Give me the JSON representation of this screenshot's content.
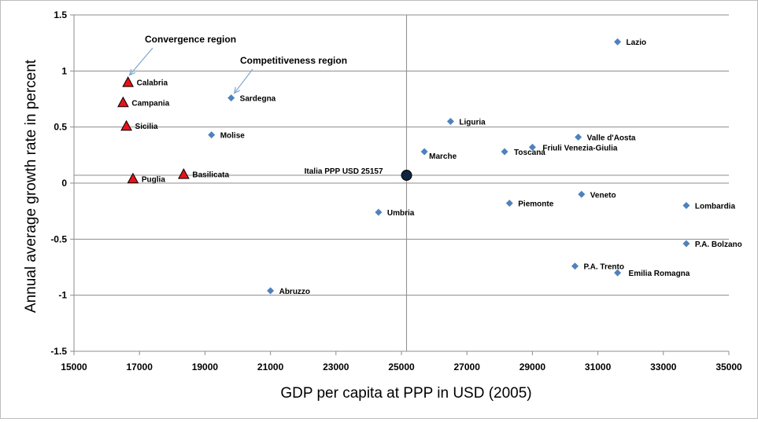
{
  "chart_data": {
    "type": "scatter",
    "title": "",
    "xlabel": "GDP per capita at PPP in USD (2005)",
    "ylabel": "Annual average growth rate in percent",
    "xlim": [
      15000,
      35000
    ],
    "ylim": [
      -1.5,
      1.5
    ],
    "x_ticks": [
      "15000",
      "17000",
      "19000",
      "21000",
      "23000",
      "25000",
      "27000",
      "29000",
      "31000",
      "33000",
      "35000"
    ],
    "y_ticks": [
      "1.5",
      "1",
      "0.5",
      "0",
      "-0.5",
      "-1",
      "-1.5"
    ],
    "grid": true,
    "reference_lines": {
      "x": 25157,
      "y": 0.07
    },
    "series": [
      {
        "marker": "triangle",
        "color": "#E8121A",
        "points": [
          {
            "label": "Calabria",
            "x": 16650,
            "y": 0.9
          },
          {
            "label": "Campania",
            "x": 16500,
            "y": 0.72
          },
          {
            "label": "Sicilia",
            "x": 16600,
            "y": 0.51
          },
          {
            "label": "Puglia",
            "x": 16800,
            "y": 0.04
          },
          {
            "label": "Basilicata",
            "x": 18350,
            "y": 0.08
          }
        ]
      },
      {
        "marker": "diamond",
        "color": "#4F81BD",
        "points": [
          {
            "label": "Lazio",
            "x": 31600,
            "y": 1.26
          },
          {
            "label": "Sardegna",
            "x": 19800,
            "y": 0.76
          },
          {
            "label": "Molise",
            "x": 19200,
            "y": 0.43
          },
          {
            "label": "Liguria",
            "x": 26500,
            "y": 0.55
          },
          {
            "label": "Marche",
            "x": 25700,
            "y": 0.28
          },
          {
            "label": "Toscana",
            "x": 28150,
            "y": 0.28
          },
          {
            "label": "Valle d'Aosta",
            "x": 30400,
            "y": 0.41
          },
          {
            "label": "Friuli Venezia-Giulia",
            "x": 29000,
            "y": 0.32
          },
          {
            "label": "Veneto",
            "x": 30500,
            "y": -0.1
          },
          {
            "label": "Lombardia",
            "x": 33700,
            "y": -0.2
          },
          {
            "label": "Piemonte",
            "x": 28300,
            "y": -0.18
          },
          {
            "label": "Umbria",
            "x": 24300,
            "y": -0.26
          },
          {
            "label": "P.A. Bolzano",
            "x": 33700,
            "y": -0.54
          },
          {
            "label": "P.A. Trento",
            "x": 30300,
            "y": -0.74
          },
          {
            "label": "Emilia Romagna",
            "x": 31600,
            "y": -0.8
          },
          {
            "label": "Abruzzo",
            "x": 21000,
            "y": -0.96
          }
        ]
      },
      {
        "marker": "circle",
        "color": "#0F243E",
        "points": [
          {
            "label": "Italia PPP USD 25157",
            "x": 25157,
            "y": 0.07
          }
        ]
      }
    ],
    "annotations": [
      {
        "text": "Convergence region",
        "target": "Calabria"
      },
      {
        "text": "Competitiveness region",
        "target": "Sardegna"
      }
    ]
  }
}
